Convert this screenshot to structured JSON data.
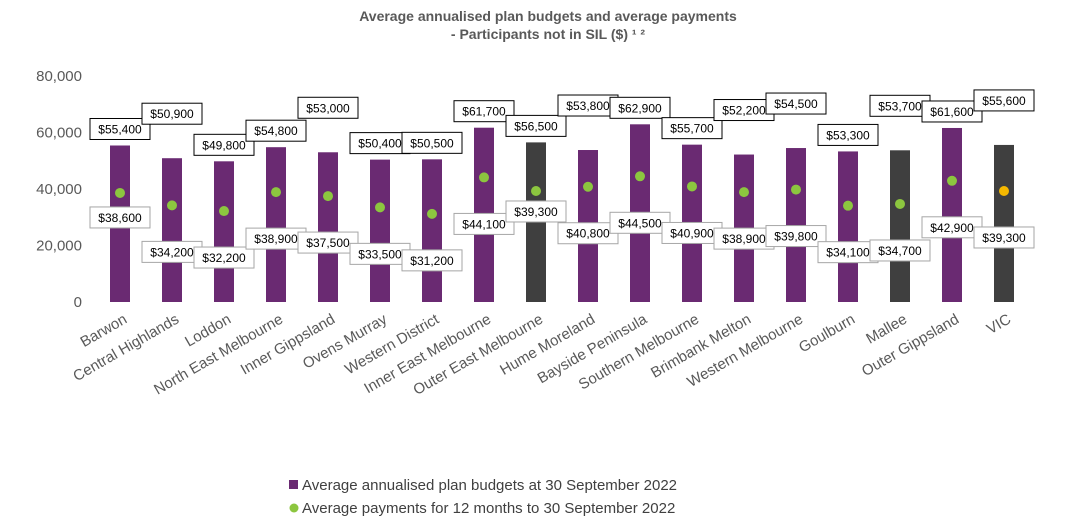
{
  "colors": {
    "budget": "#6a2a72",
    "budget_highlight": "#3f3f3f",
    "payment": "#8cc63f",
    "payment_highlight": "#f5b800",
    "axis_text": "#595959",
    "budget_label_border": "#000000",
    "payment_label_border": "#a6a6a6"
  },
  "chart_data": {
    "type": "bar",
    "title": "Average annualised plan budgets and average payments",
    "subtitle": "- Participants not in SIL ($) ¹ ²",
    "categories": [
      "Barwon",
      "Central Highlands",
      "Loddon",
      "North East Melbourne",
      "Inner Gippsland",
      "Ovens Murray",
      "Western District",
      "Inner East Melbourne",
      "Outer East Melbourne",
      "Hume Moreland",
      "Bayside Peninsula",
      "Southern Melbourne",
      "Brimbank Melton",
      "Western Melbourne",
      "Goulburn",
      "Mallee",
      "Outer Gippsland",
      "VIC"
    ],
    "highlight_bars": [
      "Outer East Melbourne",
      "Mallee",
      "VIC"
    ],
    "highlight_points": [
      "VIC"
    ],
    "series": [
      {
        "name": "Average annualised plan budgets at 30 September 2022",
        "type": "bar",
        "values": [
          55400,
          50900,
          49800,
          54800,
          53000,
          50400,
          50500,
          61700,
          56500,
          53800,
          62900,
          55700,
          52200,
          54500,
          53300,
          53700,
          61600,
          55600
        ],
        "labels": [
          "$55,400",
          "$50,900",
          "$49,800",
          "$54,800",
          "$53,000",
          "$50,400",
          "$50,500",
          "$61,700",
          "$56,500",
          "$53,800",
          "$62,900",
          "$55,700",
          "$52,200",
          "$54,500",
          "$53,300",
          "$53,700",
          "$61,600",
          "$55,600"
        ]
      },
      {
        "name": "Average payments for 12 months to 30 September 2022",
        "type": "scatter",
        "values": [
          38600,
          34200,
          32200,
          38900,
          37500,
          33500,
          31200,
          44100,
          39300,
          40800,
          44500,
          40900,
          38900,
          39800,
          34100,
          34700,
          42900,
          39300
        ],
        "labels": [
          "$38,600",
          "$34,200",
          "$32,200",
          "$38,900",
          "$37,500",
          "$33,500",
          "$31,200",
          "$44,100",
          "$39,300",
          "$40,800",
          "$44,500",
          "$40,900",
          "$38,900",
          "$39,800",
          "$34,100",
          "$34,700",
          "$42,900",
          "$39,300"
        ]
      }
    ],
    "ylim": [
      0,
      80000
    ],
    "yticks": [
      0,
      20000,
      40000,
      60000,
      80000
    ],
    "ytick_labels": [
      "0",
      "20,000",
      "40,000",
      "60,000",
      "80,000"
    ],
    "xlabel": "",
    "ylabel": "",
    "grid": false,
    "legend_position": "bottom"
  }
}
